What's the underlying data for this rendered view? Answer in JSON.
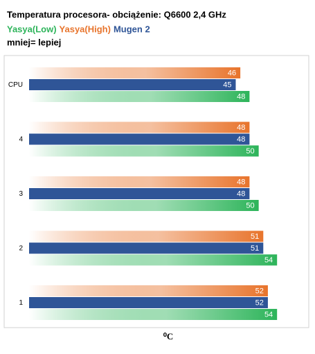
{
  "chart_data": {
    "type": "hbar",
    "title": "Temperatura procesora- obciążenie: Q6600 2,4 GHz",
    "subtitle": "mniej= lepiej",
    "x_label": "⁰C",
    "categories": [
      "CPU",
      "4",
      "3",
      "2",
      "1"
    ],
    "series": [
      {
        "name": "Yasya(Low)",
        "color": "#2db45a",
        "values": [
          48,
          50,
          50,
          54,
          54
        ]
      },
      {
        "name": "Yasya(High)",
        "color": "#e8742c",
        "values": [
          46,
          48,
          48,
          51,
          52
        ]
      },
      {
        "name": "Mugen 2",
        "color": "#2f5597",
        "values": [
          45,
          48,
          48,
          51,
          52
        ]
      }
    ],
    "xlim": [
      0,
      60
    ]
  }
}
